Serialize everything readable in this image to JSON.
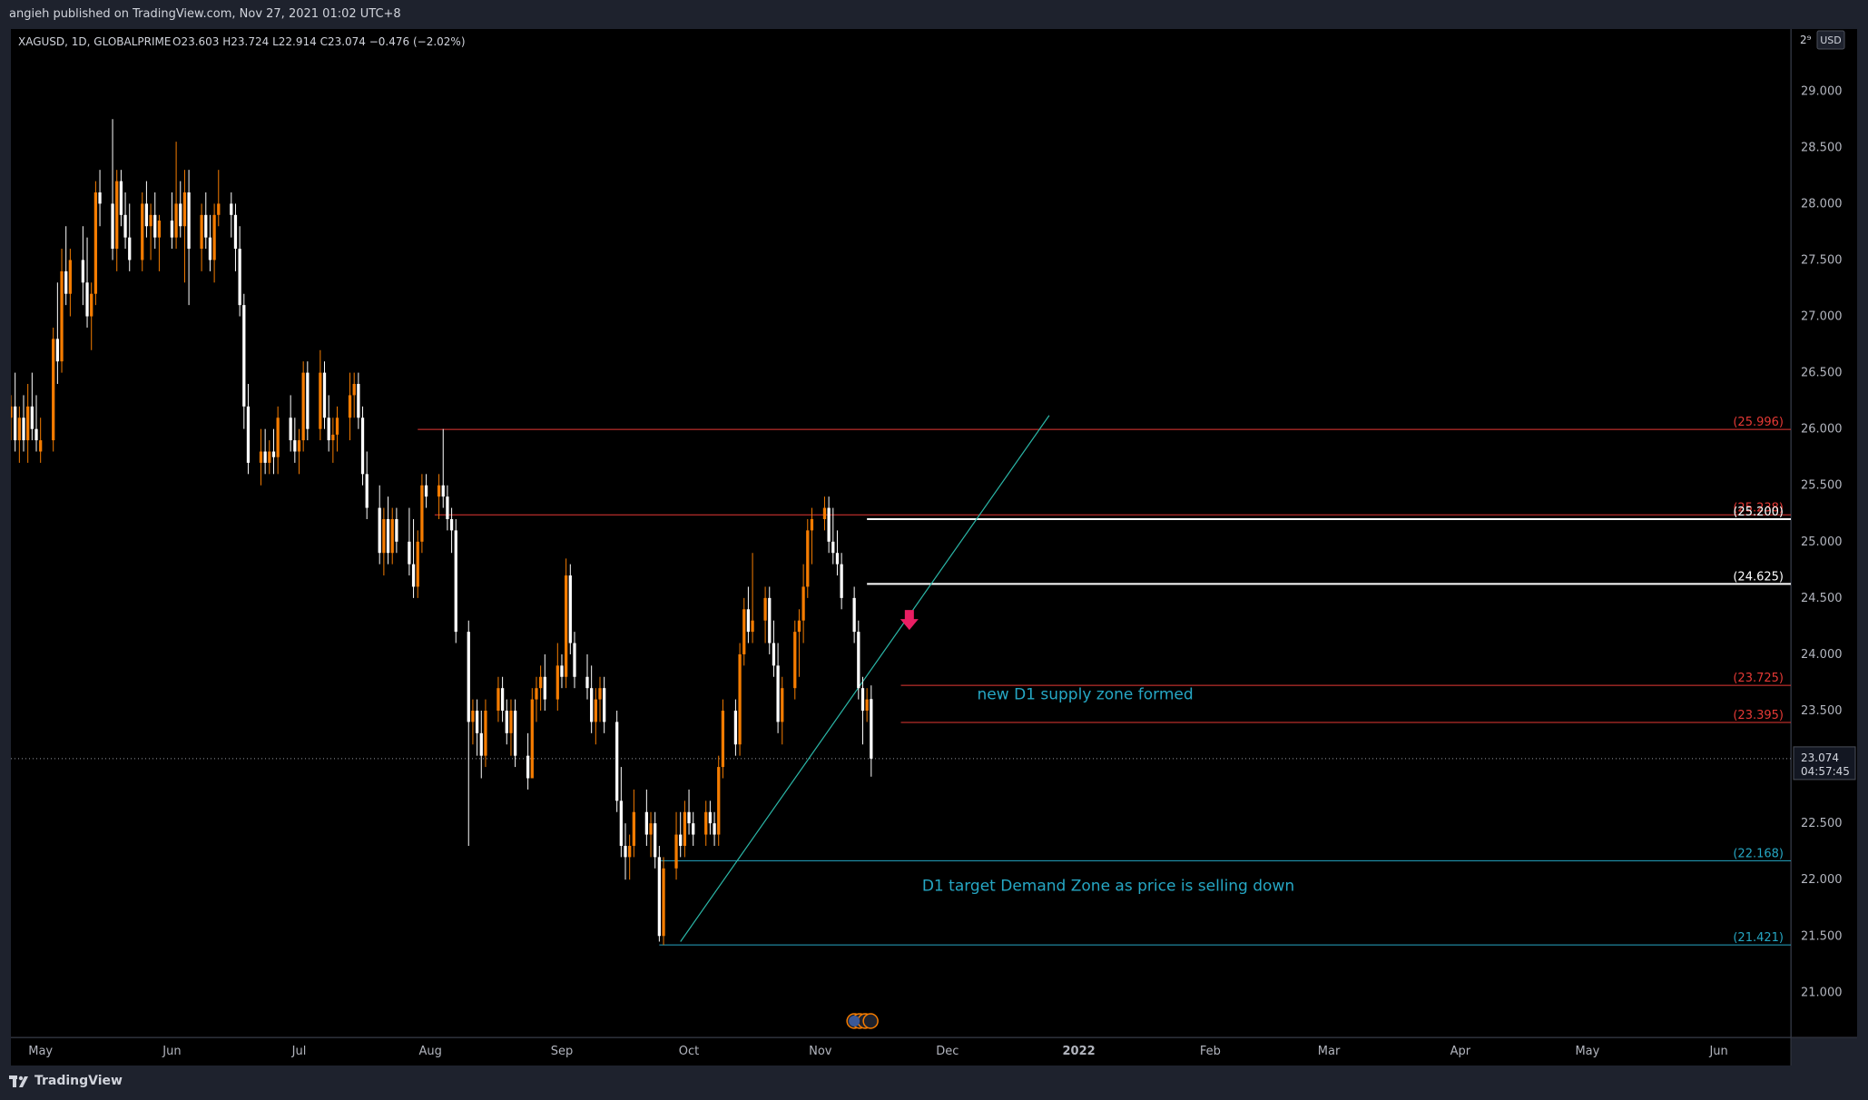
{
  "header": {
    "published_text": "angieh published on TradingView.com, Nov 27, 2021 01:02 UTC+8"
  },
  "legend": {
    "symbol": "XAGUSD, 1D, GLOBALPRIME",
    "ohlc": "O23.603  H23.724  L22.914  C23.074  −0.476 (−2.02%)"
  },
  "price_scale": {
    "currency": "USD",
    "top_cut": "2⁹",
    "last_price": "23.074",
    "countdown": "04:57:45"
  },
  "footer": {
    "brand": "TradingView"
  },
  "colors": {
    "background": "#000000",
    "frame": "#1e222d",
    "bull": "#f57c00",
    "bear": "#ffffff",
    "red_level": "#e53935",
    "white_level": "#ffffff",
    "blue_level": "#26a7c4",
    "trendline": "#2bb7a8",
    "arrow": "#e91e63",
    "annotation": "#26a7c4"
  },
  "chart_data": {
    "type": "candlestick",
    "symbol": "XAGUSD",
    "timeframe": "1D",
    "ylim": [
      20.6,
      29.55
    ],
    "y_ticks": [
      "21.000",
      "21.500",
      "22.000",
      "22.500",
      "23.000",
      "23.500",
      "24.000",
      "24.500",
      "25.000",
      "25.500",
      "26.000",
      "26.500",
      "27.000",
      "27.500",
      "28.000",
      "28.500",
      "29.000"
    ],
    "x_ticks": [
      {
        "label": "May",
        "day": 0
      },
      {
        "label": "Jun",
        "day": 31
      },
      {
        "label": "Jul",
        "day": 61
      },
      {
        "label": "Aug",
        "day": 92
      },
      {
        "label": "Sep",
        "day": 123
      },
      {
        "label": "Oct",
        "day": 153
      },
      {
        "label": "Nov",
        "day": 184
      },
      {
        "label": "Dec",
        "day": 214
      },
      {
        "label": "2022",
        "day": 245
      },
      {
        "label": "Feb",
        "day": 276
      },
      {
        "label": "Mar",
        "day": 304
      },
      {
        "label": "Apr",
        "day": 335
      },
      {
        "label": "May",
        "day": 365
      },
      {
        "label": "Jun",
        "day": 396
      }
    ],
    "x_day_range": [
      -7,
      413
    ],
    "trendline": {
      "from": {
        "day": 151,
        "price": 21.45
      },
      "to": {
        "day": 238,
        "price": 26.12
      }
    },
    "horizontal_levels": [
      {
        "price": 25.996,
        "label": "(25.996)",
        "color": "red",
        "from_day": 89
      },
      {
        "price": 25.238,
        "label": "(25.238)",
        "color": "red",
        "from_day": 93
      },
      {
        "price": 25.2,
        "label": "(25.200)",
        "color": "white",
        "from_day": 195
      },
      {
        "price": 24.625,
        "label": "(24.625)",
        "color": "white",
        "from_day": 195
      },
      {
        "price": 23.725,
        "label": "(23.725)",
        "color": "red",
        "from_day": 203
      },
      {
        "price": 23.395,
        "label": "(23.395)",
        "color": "red",
        "from_day": 203
      },
      {
        "price": 22.168,
        "label": "(22.168)",
        "color": "blue",
        "from_day": 146
      },
      {
        "price": 21.421,
        "label": "(21.421)",
        "color": "blue",
        "from_day": 146
      }
    ],
    "last_close": 23.074,
    "arrow": {
      "day": 205,
      "price": 24.28
    },
    "annotations": [
      {
        "text": "new D1 supply zone formed",
        "day": 221,
        "price": 23.6
      },
      {
        "text": "D1 target Demand Zone as price is selling down",
        "day": 208,
        "price": 21.9
      }
    ],
    "candles": [
      {
        "d": -7,
        "o": 26.1,
        "h": 26.3,
        "l": 25.9,
        "c": 26.2
      },
      {
        "d": -6,
        "o": 26.2,
        "h": 26.5,
        "l": 25.8,
        "c": 25.9
      },
      {
        "d": -5,
        "o": 25.9,
        "h": 26.2,
        "l": 25.7,
        "c": 26.1
      },
      {
        "d": -4,
        "o": 26.1,
        "h": 26.3,
        "l": 25.8,
        "c": 25.9
      },
      {
        "d": -3,
        "o": 25.9,
        "h": 26.4,
        "l": 25.7,
        "c": 26.2
      },
      {
        "d": -2,
        "o": 26.2,
        "h": 26.5,
        "l": 25.9,
        "c": 26.0
      },
      {
        "d": -1,
        "o": 26.0,
        "h": 26.3,
        "l": 25.8,
        "c": 25.9
      },
      {
        "d": 0,
        "o": 25.8,
        "h": 26.1,
        "l": 25.7,
        "c": 25.9
      },
      {
        "d": 3,
        "o": 25.9,
        "h": 26.9,
        "l": 25.8,
        "c": 26.8
      },
      {
        "d": 4,
        "o": 26.8,
        "h": 27.3,
        "l": 26.4,
        "c": 26.6
      },
      {
        "d": 5,
        "o": 26.6,
        "h": 27.6,
        "l": 26.5,
        "c": 27.4
      },
      {
        "d": 6,
        "o": 27.4,
        "h": 27.8,
        "l": 27.1,
        "c": 27.2
      },
      {
        "d": 7,
        "o": 27.2,
        "h": 27.6,
        "l": 27.0,
        "c": 27.5
      },
      {
        "d": 10,
        "o": 27.5,
        "h": 27.8,
        "l": 27.1,
        "c": 27.3
      },
      {
        "d": 11,
        "o": 27.3,
        "h": 27.7,
        "l": 26.9,
        "c": 27.0
      },
      {
        "d": 12,
        "o": 27.0,
        "h": 27.3,
        "l": 26.7,
        "c": 27.2
      },
      {
        "d": 13,
        "o": 27.2,
        "h": 28.2,
        "l": 27.1,
        "c": 28.1
      },
      {
        "d": 14,
        "o": 28.1,
        "h": 28.3,
        "l": 27.8,
        "c": 28.0
      },
      {
        "d": 17,
        "o": 28.0,
        "h": 28.75,
        "l": 27.5,
        "c": 27.6
      },
      {
        "d": 18,
        "o": 27.6,
        "h": 28.3,
        "l": 27.4,
        "c": 28.2
      },
      {
        "d": 19,
        "o": 28.2,
        "h": 28.3,
        "l": 27.8,
        "c": 27.9
      },
      {
        "d": 20,
        "o": 27.9,
        "h": 28.1,
        "l": 27.6,
        "c": 27.7
      },
      {
        "d": 21,
        "o": 27.7,
        "h": 28.0,
        "l": 27.4,
        "c": 27.5
      },
      {
        "d": 24,
        "o": 27.5,
        "h": 28.1,
        "l": 27.4,
        "c": 28.0
      },
      {
        "d": 25,
        "o": 28.0,
        "h": 28.2,
        "l": 27.7,
        "c": 27.8
      },
      {
        "d": 26,
        "o": 27.8,
        "h": 28.0,
        "l": 27.5,
        "c": 27.9
      },
      {
        "d": 27,
        "o": 27.9,
        "h": 28.1,
        "l": 27.6,
        "c": 27.7
      },
      {
        "d": 28,
        "o": 27.7,
        "h": 27.9,
        "l": 27.4,
        "c": 27.85
      },
      {
        "d": 31,
        "o": 27.85,
        "h": 28.1,
        "l": 27.6,
        "c": 27.7
      },
      {
        "d": 32,
        "o": 27.7,
        "h": 28.55,
        "l": 27.6,
        "c": 28.0
      },
      {
        "d": 33,
        "o": 28.0,
        "h": 28.2,
        "l": 27.7,
        "c": 27.8
      },
      {
        "d": 34,
        "o": 27.8,
        "h": 28.3,
        "l": 27.3,
        "c": 28.1
      },
      {
        "d": 35,
        "o": 28.1,
        "h": 28.3,
        "l": 27.1,
        "c": 27.6
      },
      {
        "d": 38,
        "o": 27.6,
        "h": 28.0,
        "l": 27.4,
        "c": 27.9
      },
      {
        "d": 39,
        "o": 27.9,
        "h": 28.1,
        "l": 27.6,
        "c": 27.7
      },
      {
        "d": 40,
        "o": 27.7,
        "h": 27.9,
        "l": 27.4,
        "c": 27.5
      },
      {
        "d": 41,
        "o": 27.5,
        "h": 28.0,
        "l": 27.3,
        "c": 27.9
      },
      {
        "d": 42,
        "o": 27.9,
        "h": 28.3,
        "l": 27.8,
        "c": 28.0
      },
      {
        "d": 45,
        "o": 28.0,
        "h": 28.1,
        "l": 27.7,
        "c": 27.9
      },
      {
        "d": 46,
        "o": 27.9,
        "h": 28.0,
        "l": 27.4,
        "c": 27.6
      },
      {
        "d": 47,
        "o": 27.6,
        "h": 27.8,
        "l": 27.0,
        "c": 27.1
      },
      {
        "d": 48,
        "o": 27.1,
        "h": 27.2,
        "l": 26.0,
        "c": 26.2
      },
      {
        "d": 49,
        "o": 26.2,
        "h": 26.4,
        "l": 25.6,
        "c": 25.7
      },
      {
        "d": 52,
        "o": 25.7,
        "h": 26.0,
        "l": 25.5,
        "c": 25.8
      },
      {
        "d": 53,
        "o": 25.8,
        "h": 26.0,
        "l": 25.6,
        "c": 25.7
      },
      {
        "d": 54,
        "o": 25.7,
        "h": 25.9,
        "l": 25.6,
        "c": 25.8
      },
      {
        "d": 55,
        "o": 25.8,
        "h": 26.0,
        "l": 25.6,
        "c": 25.75
      },
      {
        "d": 56,
        "o": 25.75,
        "h": 26.2,
        "l": 25.6,
        "c": 26.1
      },
      {
        "d": 59,
        "o": 26.1,
        "h": 26.3,
        "l": 25.8,
        "c": 25.9
      },
      {
        "d": 60,
        "o": 25.9,
        "h": 26.1,
        "l": 25.7,
        "c": 25.8
      },
      {
        "d": 61,
        "o": 25.8,
        "h": 26.0,
        "l": 25.6,
        "c": 25.9
      },
      {
        "d": 62,
        "o": 25.9,
        "h": 26.6,
        "l": 25.8,
        "c": 26.5
      },
      {
        "d": 63,
        "o": 26.5,
        "h": 26.6,
        "l": 25.9,
        "c": 26.0
      },
      {
        "d": 66,
        "o": 26.0,
        "h": 26.7,
        "l": 25.9,
        "c": 26.5
      },
      {
        "d": 67,
        "o": 26.5,
        "h": 26.6,
        "l": 26.0,
        "c": 26.1
      },
      {
        "d": 68,
        "o": 26.1,
        "h": 26.3,
        "l": 25.8,
        "c": 25.9
      },
      {
        "d": 69,
        "o": 25.9,
        "h": 26.1,
        "l": 25.7,
        "c": 25.95
      },
      {
        "d": 70,
        "o": 25.95,
        "h": 26.2,
        "l": 25.8,
        "c": 26.1
      },
      {
        "d": 73,
        "o": 26.1,
        "h": 26.5,
        "l": 25.9,
        "c": 26.3
      },
      {
        "d": 74,
        "o": 26.3,
        "h": 26.5,
        "l": 26.1,
        "c": 26.4
      },
      {
        "d": 75,
        "o": 26.4,
        "h": 26.5,
        "l": 26.0,
        "c": 26.1
      },
      {
        "d": 76,
        "o": 26.1,
        "h": 26.2,
        "l": 25.5,
        "c": 25.6
      },
      {
        "d": 77,
        "o": 25.6,
        "h": 25.8,
        "l": 25.2,
        "c": 25.3
      },
      {
        "d": 80,
        "o": 25.3,
        "h": 25.5,
        "l": 24.8,
        "c": 24.9
      },
      {
        "d": 81,
        "o": 24.9,
        "h": 25.3,
        "l": 24.7,
        "c": 25.2
      },
      {
        "d": 82,
        "o": 25.2,
        "h": 25.4,
        "l": 24.8,
        "c": 24.9
      },
      {
        "d": 83,
        "o": 24.9,
        "h": 25.3,
        "l": 24.8,
        "c": 25.2
      },
      {
        "d": 84,
        "o": 25.2,
        "h": 25.3,
        "l": 24.9,
        "c": 25.0
      },
      {
        "d": 87,
        "o": 25.0,
        "h": 25.3,
        "l": 24.7,
        "c": 24.8
      },
      {
        "d": 88,
        "o": 24.8,
        "h": 25.2,
        "l": 24.5,
        "c": 24.6
      },
      {
        "d": 89,
        "o": 24.6,
        "h": 25.1,
        "l": 24.5,
        "c": 25.0
      },
      {
        "d": 90,
        "o": 25.0,
        "h": 25.6,
        "l": 24.9,
        "c": 25.5
      },
      {
        "d": 91,
        "o": 25.5,
        "h": 25.6,
        "l": 25.3,
        "c": 25.4
      },
      {
        "d": 94,
        "o": 25.4,
        "h": 25.6,
        "l": 25.2,
        "c": 25.5
      },
      {
        "d": 95,
        "o": 25.5,
        "h": 26.0,
        "l": 25.3,
        "c": 25.4
      },
      {
        "d": 96,
        "o": 25.4,
        "h": 25.5,
        "l": 25.1,
        "c": 25.2
      },
      {
        "d": 97,
        "o": 25.2,
        "h": 25.3,
        "l": 24.9,
        "c": 25.1
      },
      {
        "d": 98,
        "o": 25.1,
        "h": 25.2,
        "l": 24.1,
        "c": 24.2
      },
      {
        "d": 101,
        "o": 24.2,
        "h": 24.3,
        "l": 22.3,
        "c": 23.4
      },
      {
        "d": 102,
        "o": 23.4,
        "h": 23.6,
        "l": 23.2,
        "c": 23.5
      },
      {
        "d": 103,
        "o": 23.5,
        "h": 23.6,
        "l": 23.1,
        "c": 23.3
      },
      {
        "d": 104,
        "o": 23.3,
        "h": 23.5,
        "l": 22.9,
        "c": 23.1
      },
      {
        "d": 105,
        "o": 23.1,
        "h": 23.6,
        "l": 23.0,
        "c": 23.5
      },
      {
        "d": 108,
        "o": 23.5,
        "h": 23.8,
        "l": 23.4,
        "c": 23.7
      },
      {
        "d": 109,
        "o": 23.7,
        "h": 23.8,
        "l": 23.4,
        "c": 23.5
      },
      {
        "d": 110,
        "o": 23.5,
        "h": 23.6,
        "l": 23.2,
        "c": 23.3
      },
      {
        "d": 111,
        "o": 23.3,
        "h": 23.6,
        "l": 23.1,
        "c": 23.5
      },
      {
        "d": 112,
        "o": 23.5,
        "h": 23.6,
        "l": 23.0,
        "c": 23.1
      },
      {
        "d": 115,
        "o": 23.1,
        "h": 23.3,
        "l": 22.8,
        "c": 22.9
      },
      {
        "d": 116,
        "o": 22.9,
        "h": 23.7,
        "l": 22.9,
        "c": 23.6
      },
      {
        "d": 117,
        "o": 23.6,
        "h": 23.8,
        "l": 23.4,
        "c": 23.7
      },
      {
        "d": 118,
        "o": 23.7,
        "h": 23.9,
        "l": 23.5,
        "c": 23.8
      },
      {
        "d": 119,
        "o": 23.8,
        "h": 24.0,
        "l": 23.5,
        "c": 23.6
      },
      {
        "d": 122,
        "o": 23.6,
        "h": 24.1,
        "l": 23.5,
        "c": 23.9
      },
      {
        "d": 123,
        "o": 23.9,
        "h": 24.0,
        "l": 23.7,
        "c": 23.8
      },
      {
        "d": 124,
        "o": 23.8,
        "h": 24.85,
        "l": 23.7,
        "c": 24.7
      },
      {
        "d": 125,
        "o": 24.7,
        "h": 24.8,
        "l": 24.0,
        "c": 24.1
      },
      {
        "d": 126,
        "o": 24.1,
        "h": 24.2,
        "l": 23.7,
        "c": 23.8
      },
      {
        "d": 129,
        "o": 23.8,
        "h": 24.0,
        "l": 23.6,
        "c": 23.7
      },
      {
        "d": 130,
        "o": 23.7,
        "h": 23.9,
        "l": 23.3,
        "c": 23.4
      },
      {
        "d": 131,
        "o": 23.4,
        "h": 23.7,
        "l": 23.2,
        "c": 23.6
      },
      {
        "d": 132,
        "o": 23.6,
        "h": 23.8,
        "l": 23.4,
        "c": 23.7
      },
      {
        "d": 133,
        "o": 23.7,
        "h": 23.8,
        "l": 23.3,
        "c": 23.4
      },
      {
        "d": 136,
        "o": 23.4,
        "h": 23.5,
        "l": 22.6,
        "c": 22.7
      },
      {
        "d": 137,
        "o": 22.7,
        "h": 23.0,
        "l": 22.2,
        "c": 22.3
      },
      {
        "d": 138,
        "o": 22.3,
        "h": 22.5,
        "l": 22.0,
        "c": 22.2
      },
      {
        "d": 139,
        "o": 22.2,
        "h": 22.4,
        "l": 22.0,
        "c": 22.3
      },
      {
        "d": 140,
        "o": 22.3,
        "h": 22.8,
        "l": 22.2,
        "c": 22.6
      },
      {
        "d": 143,
        "o": 22.6,
        "h": 22.8,
        "l": 22.3,
        "c": 22.4
      },
      {
        "d": 144,
        "o": 22.4,
        "h": 22.6,
        "l": 22.2,
        "c": 22.5
      },
      {
        "d": 145,
        "o": 22.5,
        "h": 22.6,
        "l": 22.1,
        "c": 22.2
      },
      {
        "d": 146,
        "o": 22.2,
        "h": 22.3,
        "l": 21.45,
        "c": 21.5
      },
      {
        "d": 147,
        "o": 21.5,
        "h": 22.2,
        "l": 21.42,
        "c": 22.1
      },
      {
        "d": 150,
        "o": 22.1,
        "h": 22.6,
        "l": 22.0,
        "c": 22.4
      },
      {
        "d": 151,
        "o": 22.4,
        "h": 22.6,
        "l": 22.2,
        "c": 22.3
      },
      {
        "d": 152,
        "o": 22.3,
        "h": 22.7,
        "l": 22.2,
        "c": 22.6
      },
      {
        "d": 153,
        "o": 22.6,
        "h": 22.8,
        "l": 22.4,
        "c": 22.5
      },
      {
        "d": 154,
        "o": 22.5,
        "h": 22.6,
        "l": 22.3,
        "c": 22.4
      },
      {
        "d": 157,
        "o": 22.4,
        "h": 22.7,
        "l": 22.3,
        "c": 22.6
      },
      {
        "d": 158,
        "o": 22.6,
        "h": 22.7,
        "l": 22.4,
        "c": 22.5
      },
      {
        "d": 159,
        "o": 22.5,
        "h": 22.6,
        "l": 22.3,
        "c": 22.4
      },
      {
        "d": 160,
        "o": 22.4,
        "h": 23.1,
        "l": 22.3,
        "c": 23.0
      },
      {
        "d": 161,
        "o": 23.0,
        "h": 23.6,
        "l": 22.9,
        "c": 23.5
      },
      {
        "d": 164,
        "o": 23.5,
        "h": 23.6,
        "l": 23.1,
        "c": 23.2
      },
      {
        "d": 165,
        "o": 23.2,
        "h": 24.1,
        "l": 23.1,
        "c": 24.0
      },
      {
        "d": 166,
        "o": 24.0,
        "h": 24.5,
        "l": 23.9,
        "c": 24.4
      },
      {
        "d": 167,
        "o": 24.4,
        "h": 24.6,
        "l": 24.1,
        "c": 24.2
      },
      {
        "d": 168,
        "o": 24.2,
        "h": 24.9,
        "l": 24.1,
        "c": 24.3
      },
      {
        "d": 171,
        "o": 24.3,
        "h": 24.6,
        "l": 24.1,
        "c": 24.5
      },
      {
        "d": 172,
        "o": 24.5,
        "h": 24.6,
        "l": 24.0,
        "c": 24.1
      },
      {
        "d": 173,
        "o": 24.1,
        "h": 24.3,
        "l": 23.8,
        "c": 23.9
      },
      {
        "d": 174,
        "o": 23.9,
        "h": 24.1,
        "l": 23.3,
        "c": 23.4
      },
      {
        "d": 175,
        "o": 23.4,
        "h": 23.8,
        "l": 23.2,
        "c": 23.7
      },
      {
        "d": 178,
        "o": 23.7,
        "h": 24.3,
        "l": 23.6,
        "c": 24.2
      },
      {
        "d": 179,
        "o": 24.2,
        "h": 24.4,
        "l": 23.8,
        "c": 24.3
      },
      {
        "d": 180,
        "o": 24.3,
        "h": 24.8,
        "l": 24.1,
        "c": 24.6
      },
      {
        "d": 181,
        "o": 24.6,
        "h": 25.2,
        "l": 24.5,
        "c": 25.1
      },
      {
        "d": 182,
        "o": 25.1,
        "h": 25.3,
        "l": 24.8,
        "c": 25.2
      },
      {
        "d": 185,
        "o": 25.2,
        "h": 25.4,
        "l": 25.1,
        "c": 25.3
      },
      {
        "d": 186,
        "o": 25.3,
        "h": 25.4,
        "l": 24.9,
        "c": 25.0
      },
      {
        "d": 187,
        "o": 25.0,
        "h": 25.3,
        "l": 24.8,
        "c": 24.9
      },
      {
        "d": 188,
        "o": 24.9,
        "h": 25.1,
        "l": 24.7,
        "c": 24.8
      },
      {
        "d": 189,
        "o": 24.8,
        "h": 24.9,
        "l": 24.4,
        "c": 24.5
      },
      {
        "d": 192,
        "o": 24.5,
        "h": 24.6,
        "l": 24.1,
        "c": 24.2
      },
      {
        "d": 193,
        "o": 24.2,
        "h": 24.3,
        "l": 23.6,
        "c": 23.7
      },
      {
        "d": 194,
        "o": 23.7,
        "h": 23.8,
        "l": 23.2,
        "c": 23.5
      },
      {
        "d": 195,
        "o": 23.5,
        "h": 23.7,
        "l": 23.4,
        "c": 23.6
      },
      {
        "d": 196,
        "o": 23.603,
        "h": 23.724,
        "l": 22.914,
        "c": 23.074
      }
    ]
  }
}
